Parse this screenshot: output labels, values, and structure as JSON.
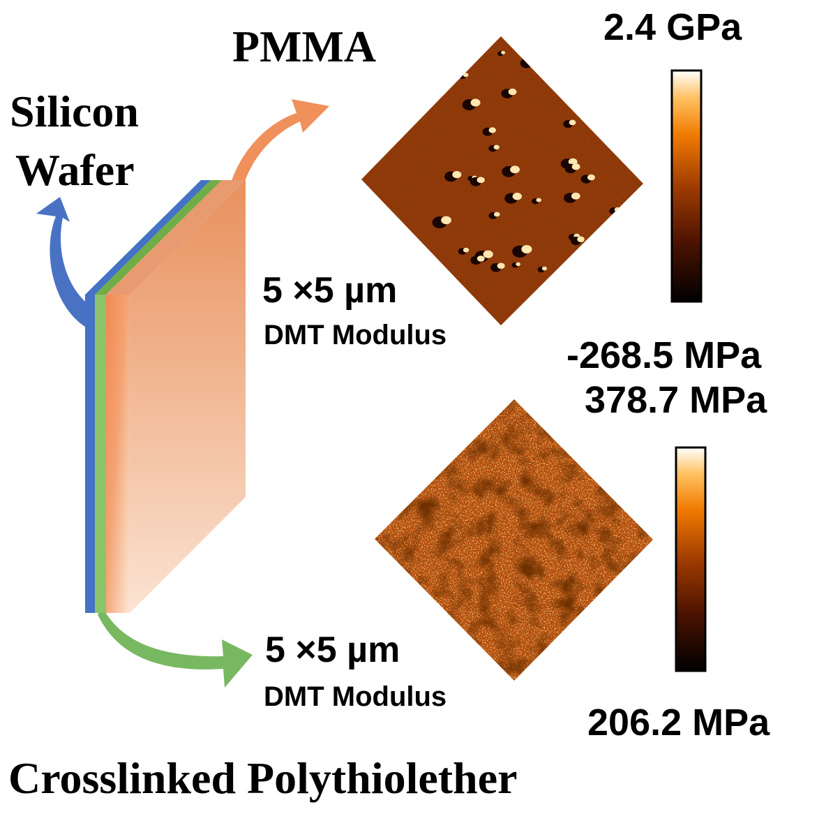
{
  "labels": {
    "pmma": "PMMA",
    "silicon_wafer_line1": "Silicon",
    "silicon_wafer_line2": "Wafer",
    "crosslinked": "Crosslinked Polythiolether"
  },
  "top_panel": {
    "scan_size": "5 ×5 µm",
    "channel": "DMT Modulus",
    "scale_max": "2.4 GPa",
    "scale_min": "-268.5 MPa"
  },
  "bottom_panel": {
    "scan_size": "5 ×5 µm",
    "channel": "DMT Modulus",
    "scale_max": "378.7 MPa",
    "scale_min": "206.2 MPa"
  },
  "colors": {
    "silicon_layer": "#4472c4",
    "polythiolether_layer": "#70ad47",
    "pmma_layer": "#f4a070",
    "arrow_silicon": "#4a72c4",
    "arrow_pmma": "#f0905a",
    "arrow_polythiolether": "#78b860",
    "afm_dark": "#2a0800",
    "afm_mid": "#b84a0c",
    "afm_light": "#ffe6b0"
  }
}
